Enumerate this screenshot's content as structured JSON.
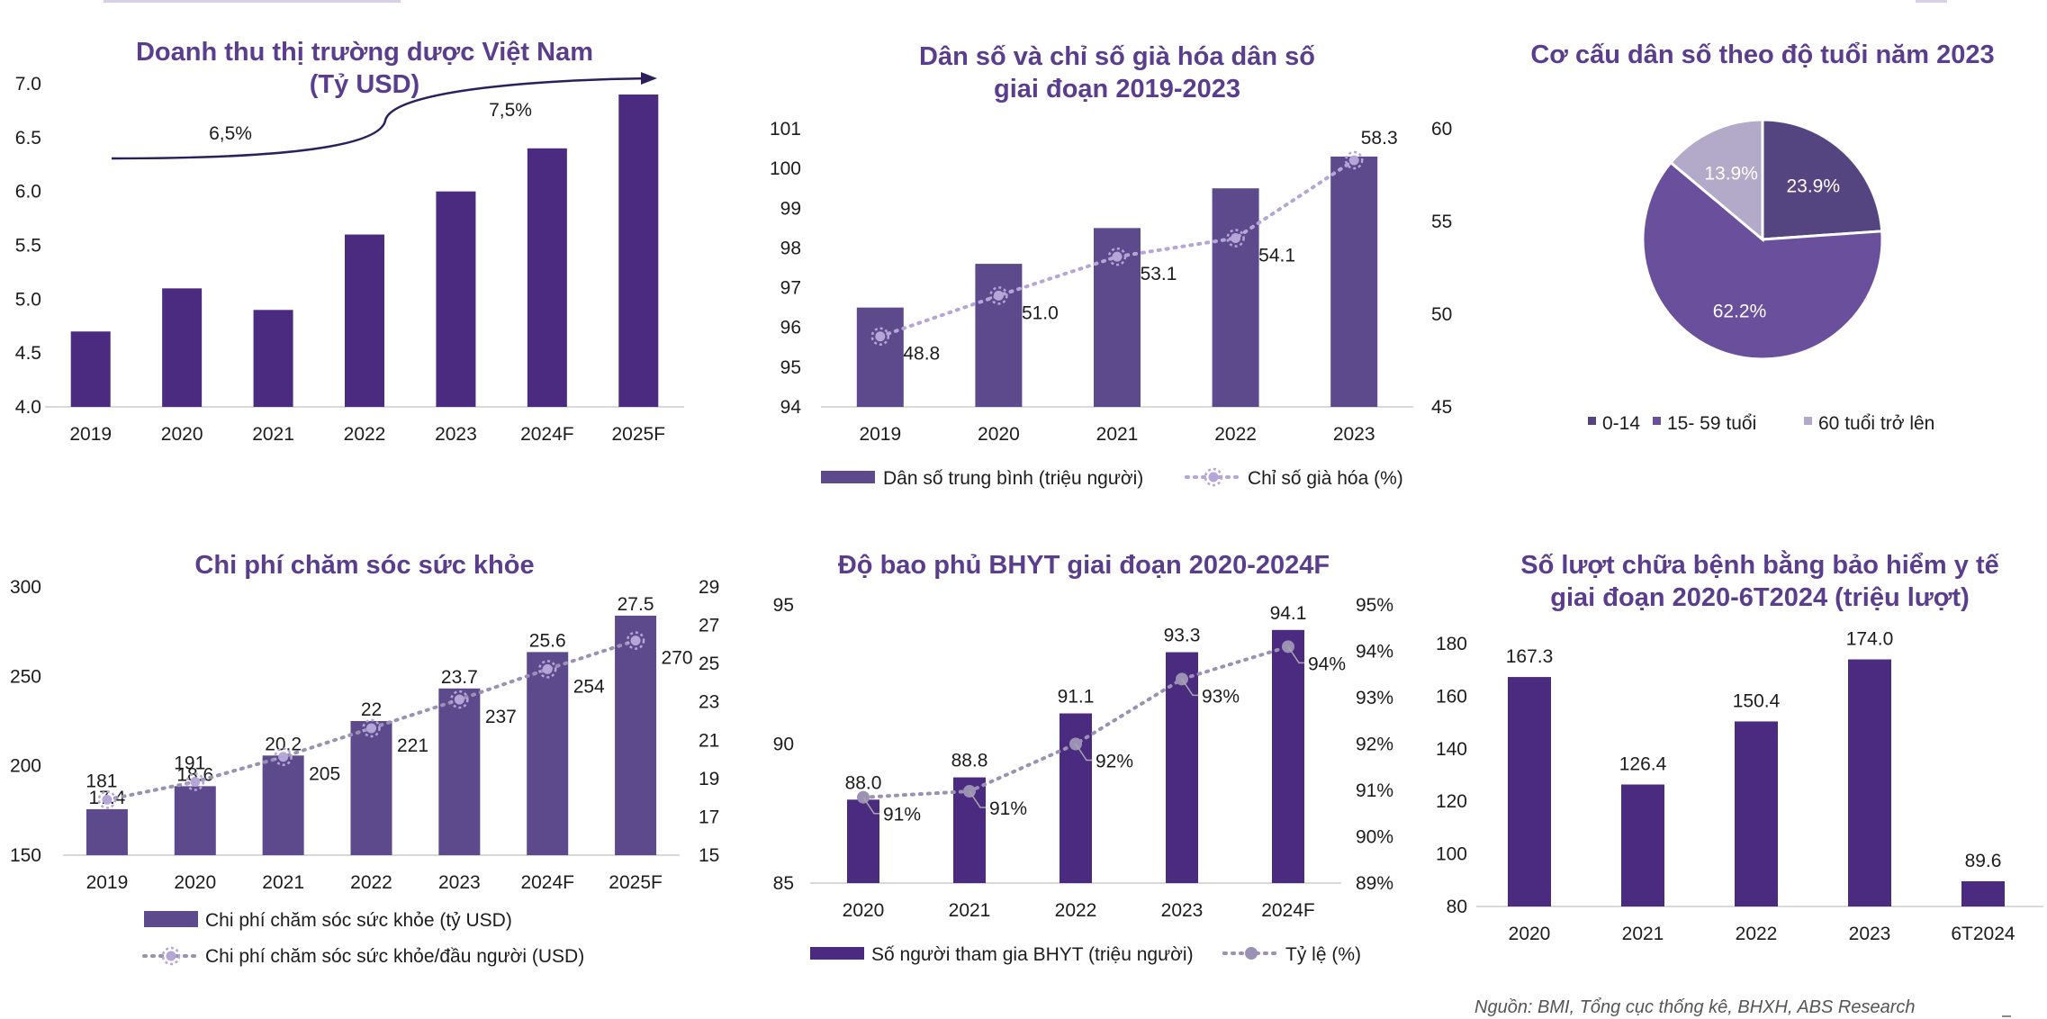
{
  "colors": {
    "bar_dark": "#4b2b80",
    "bar_mid": "#5c4a8c",
    "line_light": "#b4a6d6",
    "line_gray": "#9a91b4",
    "pie_dark": "#54447f",
    "pie_mid": "#6a4f9c",
    "pie_light": "#b3a9c9",
    "title": "#5a3d8c"
  },
  "source_note": "Nguồn: BMI, Tổng cục thống kê, BHXH, ABS Research",
  "chart_data": [
    {
      "id": "c1",
      "type": "bar",
      "title": [
        "Doanh thu thị trường dược Việt Nam",
        "(Tỷ USD)"
      ],
      "categories": [
        "2019",
        "2020",
        "2021",
        "2022",
        "2023",
        "2024F",
        "2025F"
      ],
      "values": [
        4.7,
        5.1,
        4.9,
        5.6,
        6.0,
        6.4,
        6.9
      ],
      "ylim": [
        4.0,
        7.0
      ],
      "yticks": [
        "4.0",
        "4.5",
        "5.0",
        "5.5",
        "6.0",
        "6.5",
        "7.0"
      ],
      "annotations": [
        "6,5%",
        "7,5%"
      ]
    },
    {
      "id": "c2",
      "type": "bar+line",
      "title": [
        "Dân số và chỉ số già hóa dân số",
        "giai đoạn 2019-2023"
      ],
      "categories": [
        "2019",
        "2020",
        "2021",
        "2022",
        "2023"
      ],
      "series": [
        {
          "name": "Dân số trung bình (triệu người)",
          "values": [
            96.5,
            97.6,
            98.5,
            99.5,
            100.3
          ]
        },
        {
          "name": "Chỉ số già hóa (%)",
          "values": [
            48.8,
            51.0,
            53.1,
            54.1,
            58.3
          ],
          "labels": [
            "48.8",
            "51.0",
            "53.1",
            "54.1",
            "58.3"
          ]
        }
      ],
      "ylim_left": [
        94,
        101
      ],
      "yticks_left": [
        "94",
        "95",
        "96",
        "97",
        "98",
        "99",
        "100",
        "101"
      ],
      "ylim_right": [
        45,
        60
      ],
      "yticks_right": [
        "45",
        "50",
        "55",
        "60"
      ]
    },
    {
      "id": "c3",
      "type": "pie",
      "title": [
        "Cơ cấu dân số theo độ tuổi năm 2023"
      ],
      "slices": [
        {
          "name": "0-14",
          "value": 23.9,
          "label": "23.9%"
        },
        {
          "name": "15- 59 tuổi",
          "value": 62.2,
          "label": "62.2%"
        },
        {
          "name": "60 tuổi trở lên",
          "value": 13.9,
          "label": "13.9%"
        }
      ]
    },
    {
      "id": "c4",
      "type": "bar+line",
      "title": [
        "Chi phí chăm sóc sức khỏe"
      ],
      "categories": [
        "2019",
        "2020",
        "2021",
        "2022",
        "2023",
        "2024F",
        "2025F"
      ],
      "series": [
        {
          "name": "Chi phí chăm sóc sức khỏe (tỷ USD)",
          "values": [
            17.4,
            18.6,
            20.2,
            22,
            23.7,
            25.6,
            27.5
          ],
          "labels": [
            "17.4",
            "18.6",
            "20.2",
            "22",
            "23.7",
            "25.6",
            "27.5"
          ]
        },
        {
          "name": "Chi phí chăm sóc sức khỏe/đầu người (USD)",
          "values": [
            181,
            191,
            205,
            221,
            237,
            254,
            270
          ],
          "labels": [
            "181",
            "191",
            "205",
            "221",
            "237",
            "254",
            "270"
          ]
        }
      ],
      "ylim_left": [
        150,
        300
      ],
      "yticks_left": [
        "150",
        "200",
        "250",
        "300"
      ],
      "ylim_right": [
        15,
        29
      ],
      "yticks_right": [
        "15",
        "17",
        "19",
        "21",
        "23",
        "25",
        "27",
        "29"
      ]
    },
    {
      "id": "c5",
      "type": "bar+line",
      "title": [
        "Độ bao phủ BHYT giai đoạn 2020-2024F"
      ],
      "categories": [
        "2020",
        "2021",
        "2022",
        "2023",
        "2024F"
      ],
      "series": [
        {
          "name": "Số người tham gia BHYT (triệu người)",
          "values": [
            88.0,
            88.8,
            91.1,
            93.3,
            94.1
          ],
          "labels": [
            "88.0",
            "88.8",
            "91.1",
            "93.3",
            "94.1"
          ]
        },
        {
          "name": "Tỷ lệ (%)",
          "values": [
            90.85,
            90.98,
            92.0,
            93.4,
            94.1
          ],
          "labels": [
            "91%",
            "91%",
            "92%",
            "93%",
            "94%"
          ]
        }
      ],
      "ylim_left": [
        85,
        95
      ],
      "yticks_left": [
        "85",
        "90",
        "95"
      ],
      "ylim_right": [
        89,
        95
      ],
      "yticks_right": [
        "89%",
        "90%",
        "91%",
        "92%",
        "93%",
        "94%",
        "95%"
      ]
    },
    {
      "id": "c6",
      "type": "bar",
      "title": [
        "Số lượt chữa bệnh bằng bảo hiểm y tế",
        "giai đoạn 2020-6T2024 (triệu lượt)"
      ],
      "categories": [
        "2020",
        "2021",
        "2022",
        "2023",
        "6T2024"
      ],
      "values": [
        167.3,
        126.4,
        150.4,
        174.0,
        89.6
      ],
      "labels": [
        "167.3",
        "126.4",
        "150.4",
        "174.0",
        "89.6"
      ],
      "ylim": [
        80,
        180
      ],
      "yticks": [
        "80",
        "100",
        "120",
        "140",
        "160",
        "180"
      ]
    }
  ]
}
